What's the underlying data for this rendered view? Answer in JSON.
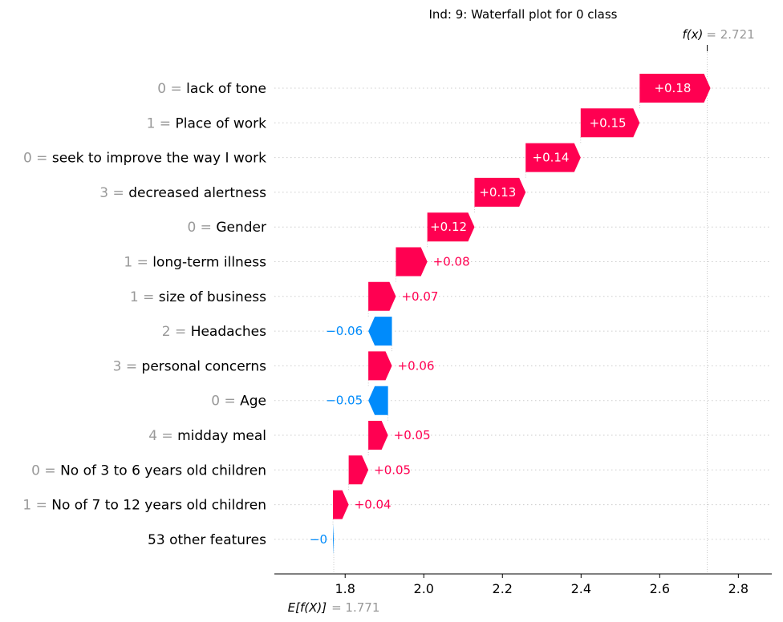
{
  "chart_data": {
    "type": "waterfall",
    "title": "Ind: 9: Waterfall plot for 0 class",
    "base_value": 1.771,
    "base_label_italic": "E[f(X)]",
    "base_value_text": "= 1.771",
    "final_value": 2.721,
    "final_label_italic": "f(x)",
    "final_value_text": "= 2.721",
    "xlim": [
      1.62,
      2.885
    ],
    "xticks": [
      1.8,
      2.0,
      2.2,
      2.4,
      2.6,
      2.8
    ],
    "xtick_labels": [
      "1.8",
      "2.0",
      "2.2",
      "2.4",
      "2.6",
      "2.8"
    ],
    "features": [
      {
        "value": "0",
        "name": "lack of tone",
        "contribution": 0.18,
        "label": "+0.18"
      },
      {
        "value": "1",
        "name": "Place of work",
        "contribution": 0.15,
        "label": "+0.15"
      },
      {
        "value": "0",
        "name": "seek to improve the way I work",
        "contribution": 0.14,
        "label": "+0.14"
      },
      {
        "value": "3",
        "name": "decreased alertness",
        "contribution": 0.13,
        "label": "+0.13"
      },
      {
        "value": "0",
        "name": "Gender",
        "contribution": 0.12,
        "label": "+0.12"
      },
      {
        "value": "1",
        "name": "long-term illness",
        "contribution": 0.08,
        "label": "+0.08"
      },
      {
        "value": "1",
        "name": "size of business",
        "contribution": 0.07,
        "label": "+0.07"
      },
      {
        "value": "2",
        "name": "Headaches",
        "contribution": -0.06,
        "label": "−0.06"
      },
      {
        "value": "3",
        "name": "personal concerns",
        "contribution": 0.06,
        "label": "+0.06"
      },
      {
        "value": "0",
        "name": "Age",
        "contribution": -0.05,
        "label": "−0.05"
      },
      {
        "value": "4",
        "name": "midday meal",
        "contribution": 0.05,
        "label": "+0.05"
      },
      {
        "value": "0",
        "name": "No of 3 to 6 years old children",
        "contribution": 0.05,
        "label": "+0.05"
      },
      {
        "value": "1",
        "name": "No of 7 to 12 years old children",
        "contribution": 0.04,
        "label": "+0.04"
      },
      {
        "value": "",
        "name": "53 other features",
        "contribution": -0.002,
        "label": "−0"
      }
    ],
    "colors": {
      "positive": "#ff0051",
      "negative": "#008bfb",
      "value_gray": "#999999",
      "text": "#000000"
    }
  }
}
